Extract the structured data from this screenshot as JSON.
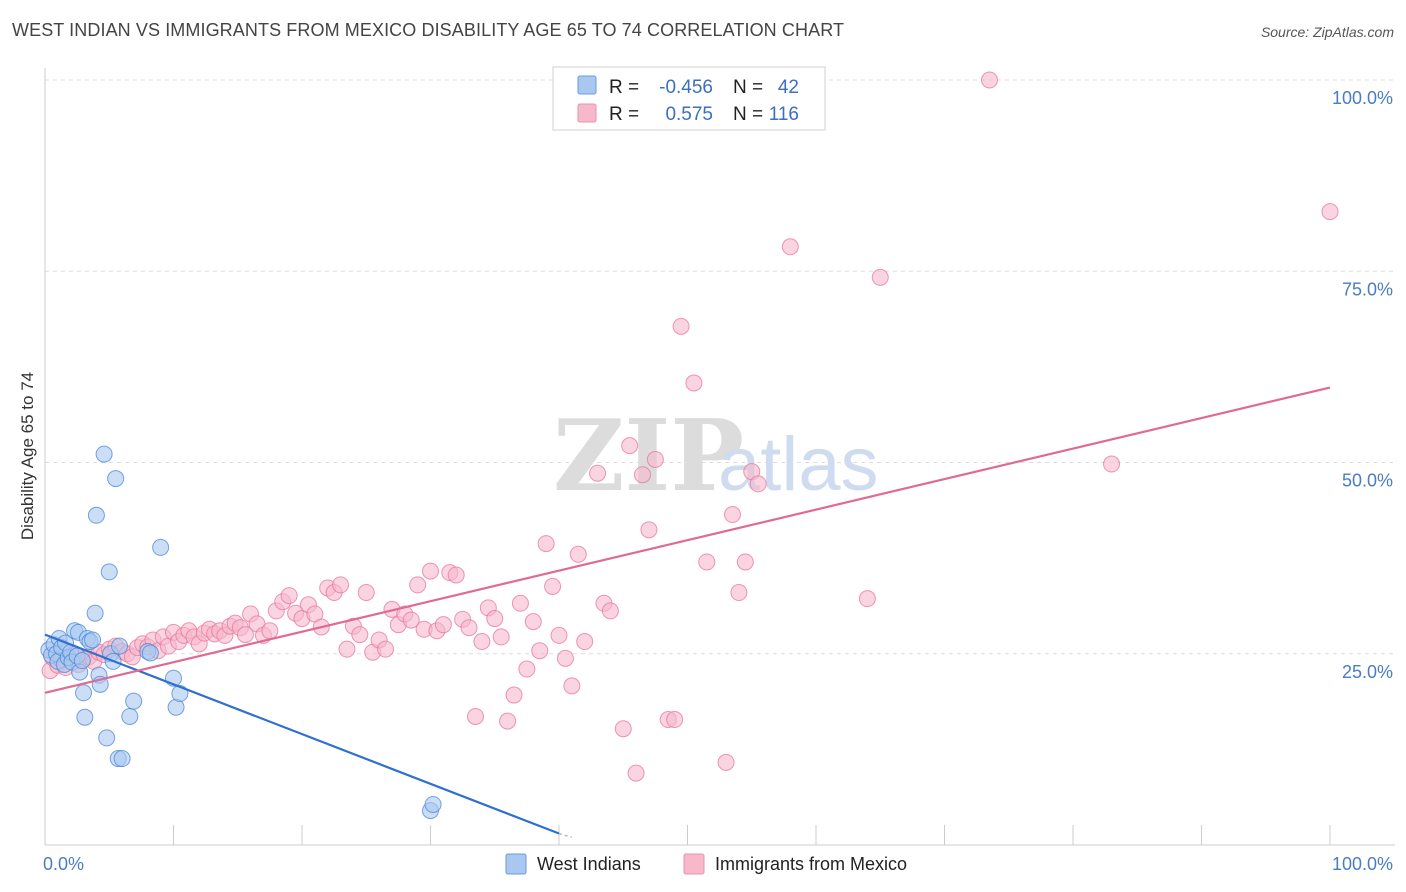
{
  "title": "WEST INDIAN VS IMMIGRANTS FROM MEXICO DISABILITY AGE 65 TO 74 CORRELATION CHART",
  "source": "Source: ZipAtlas.com",
  "watermark": {
    "zip": "ZIP",
    "atlas": "atlas"
  },
  "legend": {
    "rows": [
      {
        "r_label": "R =",
        "r_value": "-0.456",
        "n_label": "N =",
        "n_value": "42",
        "color": "#a9c8f0"
      },
      {
        "r_label": "R =",
        "r_value": "0.575",
        "n_label": "N =",
        "n_value": "116",
        "color": "#f7b8cb"
      }
    ]
  },
  "bottom_legend": {
    "items": [
      {
        "label": "West Indians",
        "color": "#a9c8f0"
      },
      {
        "label": "Immigrants from Mexico",
        "color": "#f7b8cb"
      }
    ]
  },
  "chart_data": {
    "type": "scatter",
    "title": "WEST INDIAN VS IMMIGRANTS FROM MEXICO DISABILITY AGE 65 TO 74 CORRELATION CHART",
    "xlabel": "",
    "ylabel": "Disability Age 65 to 74",
    "xlim": [
      0,
      100
    ],
    "ylim": [
      0,
      100
    ],
    "x_tick_labels": [
      "0.0%",
      "100.0%"
    ],
    "y_tick_labels": [
      "25.0%",
      "50.0%",
      "75.0%",
      "100.0%"
    ],
    "y_ticks": [
      25,
      50,
      75,
      100
    ],
    "grid": "horizontal dashed",
    "legend_position": "top-center",
    "series": [
      {
        "name": "West Indians",
        "color": "#4a86d8",
        "fill": "#a9c8f0",
        "trend": {
          "x": [
            0,
            40
          ],
          "y": [
            27.5,
            1.5
          ],
          "color": "#2e6fd0"
        },
        "trend_ext": {
          "x": [
            40,
            41
          ],
          "y": [
            1.5,
            1.0
          ]
        },
        "points": [
          [
            0.3,
            25.5
          ],
          [
            0.5,
            24.8
          ],
          [
            0.7,
            26.2
          ],
          [
            0.9,
            25.0
          ],
          [
            1.0,
            24.0
          ],
          [
            1.1,
            27.0
          ],
          [
            1.3,
            25.8
          ],
          [
            1.5,
            23.6
          ],
          [
            1.6,
            26.4
          ],
          [
            1.8,
            24.5
          ],
          [
            2.0,
            25.2
          ],
          [
            2.1,
            23.9
          ],
          [
            2.3,
            28.0
          ],
          [
            2.5,
            24.7
          ],
          [
            2.6,
            27.8
          ],
          [
            2.7,
            22.6
          ],
          [
            2.9,
            24.1
          ],
          [
            3.0,
            19.9
          ],
          [
            3.1,
            16.7
          ],
          [
            3.3,
            27.0
          ],
          [
            3.5,
            26.6
          ],
          [
            3.7,
            26.8
          ],
          [
            3.9,
            30.3
          ],
          [
            4.0,
            43.1
          ],
          [
            4.2,
            22.2
          ],
          [
            4.3,
            21.0
          ],
          [
            4.6,
            51.1
          ],
          [
            4.8,
            14.0
          ],
          [
            5.0,
            35.7
          ],
          [
            5.1,
            25.0
          ],
          [
            5.3,
            24.0
          ],
          [
            5.5,
            47.9
          ],
          [
            5.7,
            11.3
          ],
          [
            5.8,
            26.0
          ],
          [
            6.0,
            11.3
          ],
          [
            6.6,
            16.8
          ],
          [
            6.9,
            18.8
          ],
          [
            8.0,
            25.3
          ],
          [
            8.2,
            25.1
          ],
          [
            9.0,
            38.9
          ],
          [
            10.0,
            21.8
          ],
          [
            10.2,
            18.0
          ],
          [
            10.5,
            19.8
          ],
          [
            30.0,
            4.5
          ],
          [
            30.2,
            5.3
          ]
        ]
      },
      {
        "name": "Immigrants from Mexico",
        "color": "#e8769a",
        "fill": "#f7b8cb",
        "trend": {
          "x": [
            0,
            100
          ],
          "y": [
            19.9,
            59.8
          ],
          "color": "#e06a92"
        },
        "points": [
          [
            0.4,
            22.8
          ],
          [
            0.6,
            24.5
          ],
          [
            1.0,
            23.5
          ],
          [
            1.3,
            24.2
          ],
          [
            1.6,
            23.2
          ],
          [
            2.0,
            24.8
          ],
          [
            2.3,
            25.0
          ],
          [
            2.6,
            23.6
          ],
          [
            3.0,
            24.3
          ],
          [
            3.4,
            24.6
          ],
          [
            3.8,
            24.0
          ],
          [
            4.2,
            25.2
          ],
          [
            4.6,
            24.9
          ],
          [
            5.0,
            25.6
          ],
          [
            5.5,
            26.0
          ],
          [
            6.0,
            25.3
          ],
          [
            6.4,
            25.0
          ],
          [
            6.8,
            24.6
          ],
          [
            7.2,
            25.8
          ],
          [
            7.6,
            26.3
          ],
          [
            8.0,
            25.9
          ],
          [
            8.4,
            26.8
          ],
          [
            8.8,
            25.4
          ],
          [
            9.2,
            27.2
          ],
          [
            9.6,
            26.0
          ],
          [
            10.0,
            27.8
          ],
          [
            10.4,
            26.6
          ],
          [
            10.8,
            27.4
          ],
          [
            11.2,
            28.0
          ],
          [
            11.6,
            27.2
          ],
          [
            12.0,
            26.3
          ],
          [
            12.4,
            27.7
          ],
          [
            12.8,
            28.2
          ],
          [
            13.2,
            27.6
          ],
          [
            13.6,
            28.0
          ],
          [
            14.0,
            27.4
          ],
          [
            14.4,
            28.6
          ],
          [
            14.8,
            29.0
          ],
          [
            15.2,
            28.4
          ],
          [
            15.6,
            27.5
          ],
          [
            16.0,
            30.2
          ],
          [
            16.5,
            28.9
          ],
          [
            17.0,
            27.4
          ],
          [
            17.5,
            28.0
          ],
          [
            18.0,
            30.6
          ],
          [
            18.5,
            31.8
          ],
          [
            19.0,
            32.6
          ],
          [
            19.5,
            30.3
          ],
          [
            20.0,
            29.6
          ],
          [
            20.5,
            31.4
          ],
          [
            21.0,
            30.2
          ],
          [
            21.5,
            28.5
          ],
          [
            22.0,
            33.6
          ],
          [
            22.5,
            33.0
          ],
          [
            23.0,
            34.0
          ],
          [
            23.5,
            25.6
          ],
          [
            24.0,
            28.6
          ],
          [
            24.5,
            27.5
          ],
          [
            25.0,
            33.0
          ],
          [
            25.5,
            25.2
          ],
          [
            26.0,
            26.8
          ],
          [
            26.5,
            25.6
          ],
          [
            27.0,
            30.8
          ],
          [
            27.5,
            28.8
          ],
          [
            28.0,
            30.2
          ],
          [
            28.5,
            29.4
          ],
          [
            29.0,
            34.0
          ],
          [
            29.5,
            28.2
          ],
          [
            30.0,
            35.8
          ],
          [
            30.5,
            28.0
          ],
          [
            31.0,
            28.8
          ],
          [
            31.5,
            35.6
          ],
          [
            32.0,
            35.3
          ],
          [
            32.5,
            29.5
          ],
          [
            33.0,
            28.4
          ],
          [
            33.5,
            16.8
          ],
          [
            34.0,
            26.6
          ],
          [
            34.5,
            31.0
          ],
          [
            35.0,
            29.6
          ],
          [
            35.5,
            27.2
          ],
          [
            36.0,
            16.2
          ],
          [
            36.5,
            19.6
          ],
          [
            37.0,
            31.6
          ],
          [
            37.5,
            23.0
          ],
          [
            38.0,
            29.2
          ],
          [
            38.5,
            25.4
          ],
          [
            39.0,
            39.4
          ],
          [
            39.5,
            33.8
          ],
          [
            40.0,
            27.4
          ],
          [
            40.5,
            24.4
          ],
          [
            41.0,
            20.8
          ],
          [
            41.5,
            38.0
          ],
          [
            42.0,
            26.6
          ],
          [
            43.0,
            48.6
          ],
          [
            43.5,
            31.6
          ],
          [
            44.0,
            30.6
          ],
          [
            45.0,
            15.2
          ],
          [
            45.5,
            52.2
          ],
          [
            46.0,
            9.4
          ],
          [
            46.5,
            48.4
          ],
          [
            47.0,
            41.2
          ],
          [
            47.5,
            50.4
          ],
          [
            48.5,
            16.4
          ],
          [
            49.0,
            16.4
          ],
          [
            49.5,
            67.8
          ],
          [
            50.5,
            60.4
          ],
          [
            51.5,
            37.0
          ],
          [
            53.0,
            10.8
          ],
          [
            53.5,
            43.2
          ],
          [
            54.0,
            33.0
          ],
          [
            54.5,
            37.0
          ],
          [
            55.0,
            48.8
          ],
          [
            55.5,
            47.2
          ],
          [
            58.0,
            78.2
          ],
          [
            64.0,
            32.2
          ],
          [
            65.0,
            74.2
          ],
          [
            73.5,
            100.0
          ],
          [
            83.0,
            49.8
          ],
          [
            100.0,
            82.8
          ]
        ]
      }
    ]
  }
}
